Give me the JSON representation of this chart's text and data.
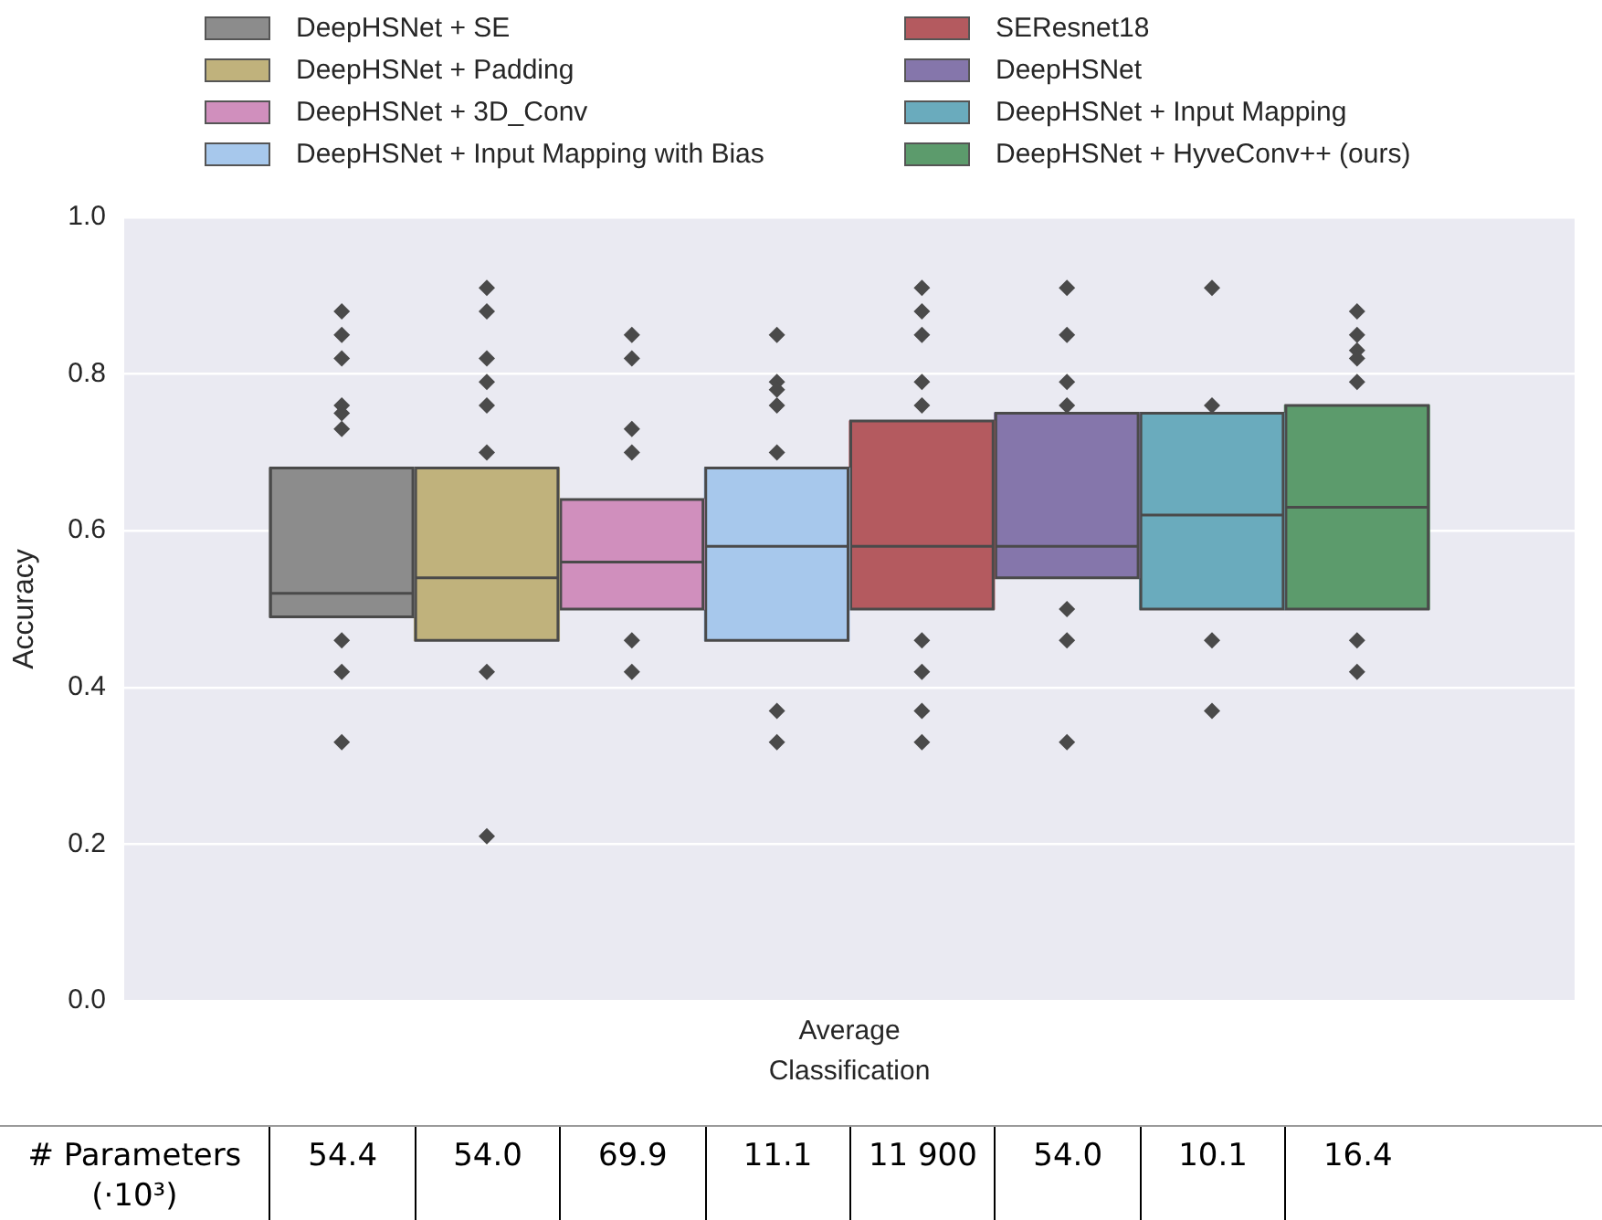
{
  "chart_data": {
    "type": "box",
    "categories": [
      "Average Classification"
    ],
    "ylabel": "Accuracy",
    "ylim": [
      0,
      1
    ],
    "yticks": [
      {
        "value": 0,
        "label": "0.0"
      },
      0.2,
      0.4,
      0.6,
      0.8,
      {
        "value": 1,
        "label": "1.0"
      }
    ],
    "grid": "y",
    "legend": "top",
    "marker": "diamond",
    "series": [
      {
        "name": "DeepHSNet + SE",
        "color": "#8c8c8c",
        "boxes": [
          {
            "low": 0.49,
            "q1": 0.49,
            "median": 0.52,
            "q3": 0.68,
            "high": 0.68,
            "outliers": [
              0.88,
              0.85,
              0.82,
              0.76,
              0.75,
              0.73,
              0.46,
              0.42,
              0.33
            ]
          }
        ]
      },
      {
        "name": "DeepHSNet + Padding",
        "color": "#c0b27c",
        "boxes": [
          {
            "low": 0.46,
            "q1": 0.46,
            "median": 0.54,
            "q3": 0.68,
            "high": 0.68,
            "outliers": [
              0.91,
              0.88,
              0.82,
              0.79,
              0.76,
              0.7,
              0.42,
              0.21
            ]
          }
        ]
      },
      {
        "name": "DeepHSNet + 3D_Conv",
        "color": "#d08fbd",
        "boxes": [
          {
            "low": 0.5,
            "q1": 0.5,
            "median": 0.56,
            "q3": 0.64,
            "high": 0.64,
            "outliers": [
              0.85,
              0.82,
              0.73,
              0.7,
              0.46,
              0.42
            ]
          }
        ]
      },
      {
        "name": "DeepHSNet + Input Mapping with Bias",
        "color": "#a7c8ec",
        "boxes": [
          {
            "low": 0.46,
            "q1": 0.46,
            "median": 0.58,
            "q3": 0.68,
            "high": 0.68,
            "outliers": [
              0.85,
              0.79,
              0.78,
              0.76,
              0.7,
              0.37,
              0.33
            ]
          }
        ]
      },
      {
        "name": "SEResnet18",
        "color": "#b45a5f",
        "boxes": [
          {
            "low": 0.5,
            "q1": 0.5,
            "median": 0.58,
            "q3": 0.74,
            "high": 0.74,
            "outliers": [
              0.91,
              0.88,
              0.85,
              0.79,
              0.76,
              0.46,
              0.42,
              0.37,
              0.33
            ]
          }
        ]
      },
      {
        "name": "DeepHSNet",
        "color": "#8576ab",
        "boxes": [
          {
            "low": 0.54,
            "q1": 0.54,
            "median": 0.58,
            "q3": 0.75,
            "high": 0.75,
            "outliers": [
              0.91,
              0.85,
              0.79,
              0.76,
              0.5,
              0.46,
              0.33
            ]
          }
        ]
      },
      {
        "name": "DeepHSNet + Input Mapping",
        "color": "#6aabbd",
        "boxes": [
          {
            "low": 0.5,
            "q1": 0.5,
            "median": 0.62,
            "q3": 0.75,
            "high": 0.75,
            "outliers": [
              0.91,
              0.76,
              0.46,
              0.37
            ]
          }
        ]
      },
      {
        "name": "DeepHSNet + HyveConv++ (ours)",
        "color": "#5c9b6c",
        "boxes": [
          {
            "low": 0.5,
            "q1": 0.5,
            "median": 0.63,
            "q3": 0.76,
            "high": 0.76,
            "outliers": [
              0.88,
              0.85,
              0.83,
              0.82,
              0.79,
              0.46,
              0.42
            ]
          }
        ]
      }
    ],
    "annotations": [
      "# Parameters (·10³)",
      "54.4",
      "54.0",
      "69.9",
      "11.1",
      "11 900",
      "54.0",
      "10.1",
      "16.4"
    ]
  }
}
